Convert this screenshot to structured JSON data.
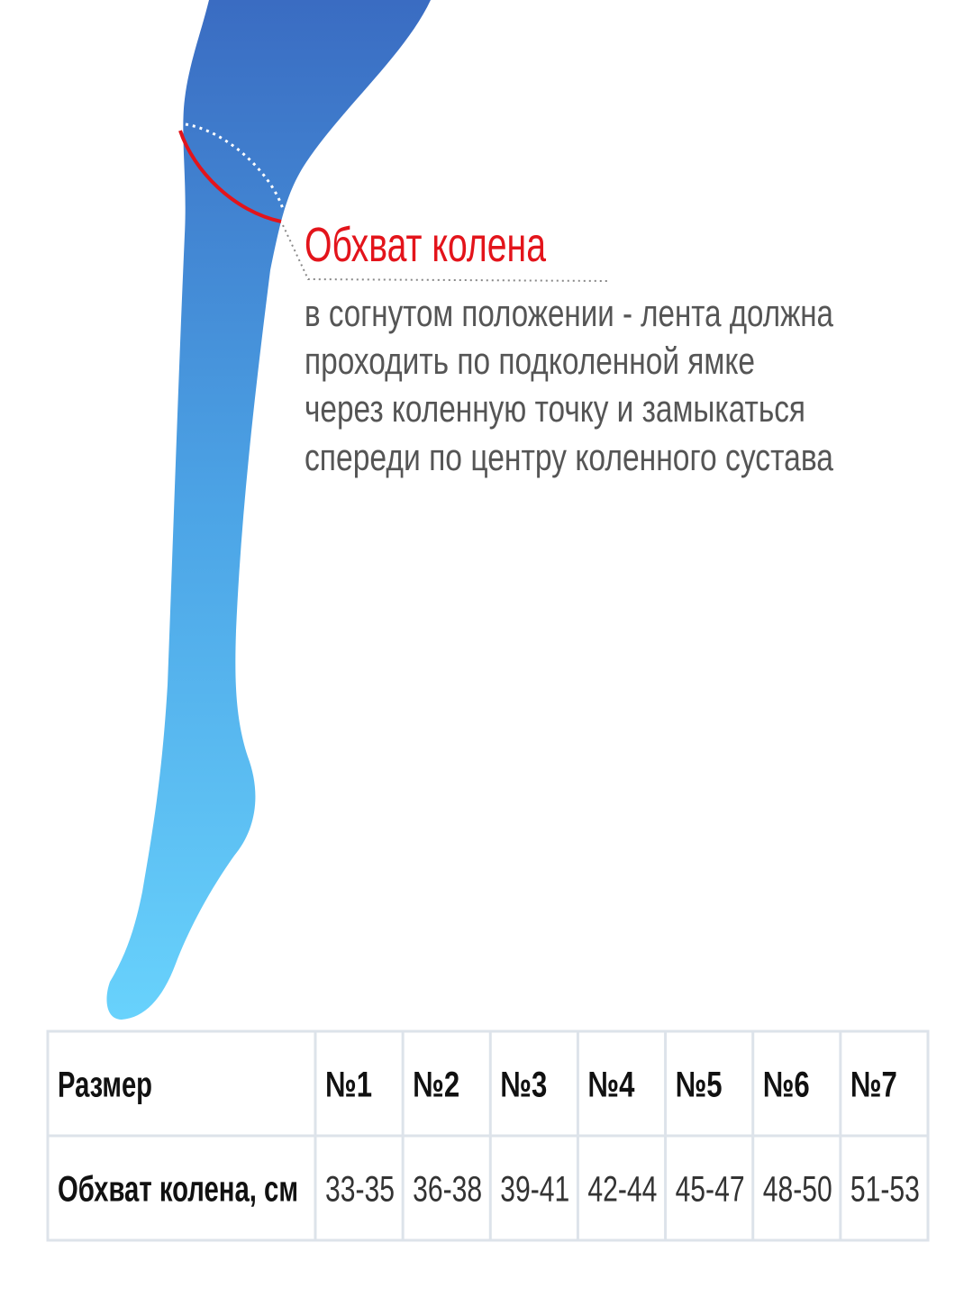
{
  "label": {
    "title": "Обхват колена",
    "lines": [
      "в согнутом положении - лента должна",
      "проходить по подколенной ямке",
      "через коленную точку и замыкаться",
      "спереди по центру коленного сустава"
    ]
  },
  "table": {
    "header": [
      "Размер",
      "№1",
      "№2",
      "№3",
      "№4",
      "№5",
      "№6",
      "№7"
    ],
    "rows": [
      [
        "Обхват колена, см",
        "33-35",
        "36-38",
        "39-41",
        "42-44",
        "45-47",
        "48-50",
        "51-53"
      ]
    ]
  }
}
